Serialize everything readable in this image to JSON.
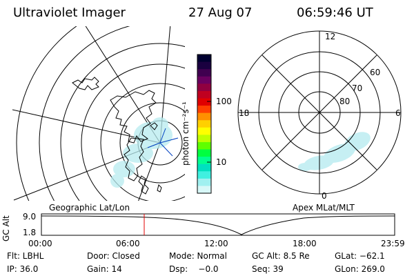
{
  "header": {
    "instrument": "Ultraviolet Imager",
    "date": "27 Aug 07",
    "time": "06:59:46 UT"
  },
  "colorbar": {
    "unit_label": "photon cm⁻²s⁻¹",
    "ticks": [
      "100",
      "10"
    ],
    "colors": [
      "#000030",
      "#1a0040",
      "#400050",
      "#6a0060",
      "#900040",
      "#c00020",
      "#e00000",
      "#ff4000",
      "#ff9000",
      "#ffd000",
      "#ffff00",
      "#c0ff00",
      "#60ff00",
      "#00ff40",
      "#00ff90",
      "#00e0c0",
      "#40f0e0",
      "#a0f0f0",
      "#d8f8f8"
    ]
  },
  "left_panel": {
    "label": "Geographic Lat/Lon"
  },
  "right_panel": {
    "label": "Apex MLat/MLT",
    "mlt_labels": {
      "top": "12",
      "left": "18",
      "right": "6",
      "bottom": "0"
    },
    "lat_labels": [
      "60",
      "70",
      "80"
    ]
  },
  "timeline": {
    "ylabel": "GC Alt",
    "yticks": [
      "9.0",
      "1.8"
    ],
    "xticks": [
      "00:00",
      "06:00",
      "12:00",
      "18:00",
      "23:59"
    ],
    "marker_color": "#e00000"
  },
  "status": {
    "flt": "Flt: LBHL",
    "door": "Door: Closed",
    "mode": "Mode: Normal",
    "gc_alt": "GC Alt: 8.5 Re",
    "glat": "GLat: −62.1",
    "ip": "IP: 36.0",
    "gain": "Gain: 14",
    "dsp": "Dsp:    −0.0",
    "seq": "Seq: 39",
    "glon": "GLon: 269.0"
  }
}
